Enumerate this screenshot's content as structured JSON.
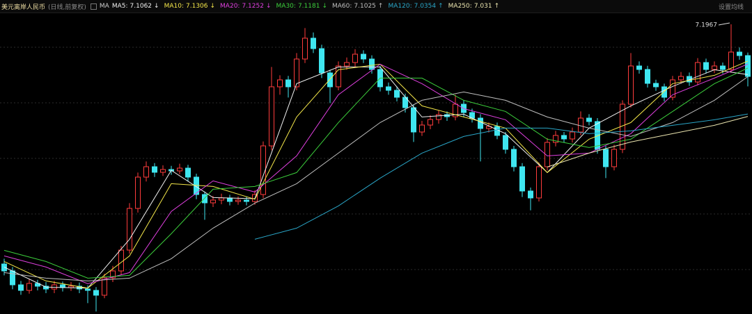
{
  "chart_data": {
    "type": "candlestick",
    "title": "美元离岸人民币",
    "subtitle": "(日线,前复权)",
    "ma_label": "MA",
    "settings_label": "设置均线",
    "up_color": "#ff3c3c",
    "down_color": "#3fe6f0",
    "ylim": [
      6.6755,
      7.2155
    ],
    "open": [
      6.7655,
      6.753,
      6.728,
      6.718,
      6.7305,
      6.7255,
      6.7205,
      6.728,
      6.723,
      6.7255,
      6.7205,
      6.718,
      6.7093,
      6.7405,
      6.753,
      6.7905,
      6.8655,
      6.9218,
      6.9405,
      6.9305,
      6.9355,
      6.933,
      6.938,
      6.9218,
      6.8905,
      6.8755,
      6.8805,
      6.8843,
      6.878,
      6.8805,
      6.878,
      6.8905,
      6.978,
      7.0843,
      7.0968,
      7.0843,
      7.1343,
      7.1718,
      7.153,
      7.1093,
      7.0843,
      7.1218,
      7.128,
      7.143,
      7.1343,
      7.1155,
      7.0843,
      7.078,
      7.0655,
      7.0468,
      7.003,
      7.0155,
      7.0255,
      7.0343,
      7.0305,
      7.053,
      7.038,
      7.028,
      7.0093,
      7.013,
      6.9968,
      6.9718,
      6.9405,
      6.8968,
      6.8843,
      6.9405,
      6.9843,
      6.9968,
      6.9905,
      7.003,
      7.028,
      7.0218,
      6.9718,
      6.9405,
      6.9718,
      7.053,
      7.1218,
      7.1155,
      7.0905,
      7.0843,
      7.0655,
      7.0968,
      7.103,
      7.093,
      7.128,
      7.1155,
      7.1218,
      7.1155,
      7.1468,
      7.1405
    ],
    "high": [
      6.775,
      6.76,
      6.735,
      6.738,
      6.737,
      6.733,
      6.735,
      6.734,
      6.733,
      6.732,
      6.727,
      6.724,
      6.748,
      6.762,
      6.798,
      6.875,
      6.93,
      6.95,
      6.947,
      6.943,
      6.942,
      6.946,
      6.944,
      6.928,
      6.896,
      6.888,
      6.892,
      6.89,
      6.887,
      6.887,
      6.898,
      6.986,
      7.12,
      7.105,
      7.104,
      7.145,
      7.19,
      7.182,
      7.16,
      7.115,
      7.13,
      7.137,
      7.152,
      7.15,
      7.141,
      7.122,
      7.092,
      7.085,
      7.072,
      7.053,
      7.023,
      7.033,
      7.042,
      7.04,
      7.07,
      7.06,
      7.045,
      7.035,
      7.02,
      7.02,
      7.003,
      6.978,
      6.947,
      6.903,
      6.948,
      6.992,
      7.005,
      7.003,
      7.011,
      7.04,
      7.035,
      7.028,
      6.978,
      6.98,
      7.06,
      7.145,
      7.13,
      7.122,
      7.097,
      7.09,
      7.104,
      7.111,
      7.11,
      7.136,
      7.135,
      7.13,
      7.128,
      7.1967,
      7.155,
      7.146
    ],
    "low": [
      6.745,
      6.72,
      6.71,
      6.712,
      6.718,
      6.713,
      6.713,
      6.716,
      6.717,
      6.713,
      6.695,
      6.68,
      6.704,
      6.733,
      6.746,
      6.784,
      6.858,
      6.914,
      6.922,
      6.924,
      6.926,
      6.927,
      6.914,
      6.882,
      6.845,
      6.868,
      6.873,
      6.871,
      6.872,
      6.871,
      6.872,
      6.884,
      6.97,
      7.07,
      7.065,
      7.078,
      7.127,
      7.145,
      7.1,
      7.055,
      7.078,
      7.115,
      7.12,
      7.127,
      7.108,
      7.076,
      7.07,
      7.058,
      7.038,
      6.985,
      6.996,
      7.008,
      7.018,
      7.023,
      7.024,
      7.03,
      7.02,
      6.95,
      7.002,
      6.99,
      6.964,
      6.932,
      6.886,
      6.862,
      6.878,
      6.934,
      6.977,
      6.984,
      6.984,
      6.997,
      7.015,
      6.964,
      6.92,
      6.934,
      6.965,
      7.047,
      7.108,
      7.083,
      7.077,
      7.058,
      7.06,
      7.09,
      7.086,
      7.087,
      7.108,
      7.109,
      7.108,
      7.11,
      7.133,
      7.085
    ],
    "close": [
      6.753,
      6.728,
      6.718,
      6.7305,
      6.7255,
      6.7205,
      6.728,
      6.723,
      6.7255,
      6.7205,
      6.718,
      6.7093,
      6.7405,
      6.753,
      6.7905,
      6.8655,
      6.9218,
      6.9405,
      6.9305,
      6.9355,
      6.933,
      6.938,
      6.9218,
      6.8905,
      6.8755,
      6.8805,
      6.8843,
      6.878,
      6.8805,
      6.878,
      6.8905,
      6.978,
      7.0843,
      7.0968,
      7.0843,
      7.1343,
      7.1718,
      7.153,
      7.1093,
      7.0843,
      7.1218,
      7.128,
      7.143,
      7.1343,
      7.1155,
      7.0843,
      7.078,
      7.0655,
      7.0468,
      7.003,
      7.0155,
      7.0255,
      7.0343,
      7.0305,
      7.053,
      7.038,
      7.028,
      7.0093,
      7.013,
      6.9968,
      6.9718,
      6.9405,
      6.8968,
      6.8843,
      6.9405,
      6.9843,
      6.9968,
      6.9905,
      7.003,
      7.028,
      7.0218,
      6.9718,
      6.9405,
      6.9718,
      7.053,
      7.1218,
      7.1155,
      7.0905,
      7.0843,
      7.0655,
      7.0968,
      7.103,
      7.093,
      7.128,
      7.1155,
      7.1218,
      7.1155,
      7.1468,
      7.1405,
      7.103
    ],
    "series": [
      {
        "name": "MA5",
        "color": "#f0f0f0",
        "trend": "↓",
        "x": [
          0,
          5,
          10,
          15,
          20,
          25,
          30,
          35,
          40,
          45,
          50,
          55,
          60,
          65,
          70,
          75,
          80,
          85,
          89
        ],
        "values": [
          6.76,
          6.724,
          6.722,
          6.81,
          6.934,
          6.885,
          6.883,
          7.09,
          7.12,
          7.12,
          7.03,
          7.035,
          7.0,
          6.93,
          7.01,
          7.05,
          7.085,
          7.115,
          7.1062
        ]
      },
      {
        "name": "MA10",
        "color": "#f5e84a",
        "trend": "↓",
        "x": [
          0,
          5,
          10,
          15,
          20,
          25,
          30,
          35,
          40,
          45,
          50,
          55,
          60,
          65,
          70,
          75,
          80,
          85,
          89
        ],
        "values": [
          6.77,
          6.735,
          6.722,
          6.78,
          6.91,
          6.905,
          6.882,
          7.03,
          7.115,
          7.125,
          7.05,
          7.03,
          7.01,
          6.93,
          6.99,
          7.02,
          7.09,
          7.105,
          7.1306
        ]
      },
      {
        "name": "MA20",
        "color": "#e040e0",
        "trend": "↓",
        "x": [
          0,
          5,
          10,
          15,
          20,
          25,
          30,
          35,
          40,
          45,
          50,
          55,
          60,
          65,
          70,
          75,
          80,
          85,
          89
        ],
        "values": [
          6.78,
          6.76,
          6.73,
          6.75,
          6.86,
          6.915,
          6.895,
          6.96,
          7.07,
          7.125,
          7.09,
          7.045,
          7.025,
          6.96,
          6.965,
          7.0,
          7.07,
          7.1,
          7.1252
        ]
      },
      {
        "name": "MA30",
        "color": "#3ccf3c",
        "trend": "↓",
        "x": [
          0,
          5,
          10,
          15,
          20,
          25,
          30,
          35,
          40,
          45,
          50,
          55,
          60,
          65,
          70,
          75,
          80,
          85,
          89
        ],
        "values": [
          6.79,
          6.77,
          6.74,
          6.745,
          6.82,
          6.9,
          6.905,
          6.93,
          7.02,
          7.1,
          7.1,
          7.06,
          7.04,
          6.99,
          6.975,
          6.99,
          7.04,
          7.09,
          7.1181
        ]
      },
      {
        "name": "MA60",
        "color": "#bfbfbf",
        "trend": "↑",
        "x": [
          0,
          5,
          10,
          15,
          20,
          25,
          30,
          35,
          40,
          45,
          50,
          55,
          60,
          65,
          70,
          75,
          80,
          85,
          89
        ],
        "values": [
          6.75,
          6.74,
          6.735,
          6.74,
          6.775,
          6.83,
          6.875,
          6.91,
          6.965,
          7.02,
          7.06,
          7.075,
          7.06,
          7.03,
          7.01,
          6.995,
          7.02,
          7.06,
          7.1025
        ]
      },
      {
        "name": "MA120",
        "color": "#2aa6c8",
        "trend": "↑",
        "x": [
          0,
          5,
          10,
          15,
          20,
          25,
          30,
          35,
          40,
          45,
          50,
          55,
          60,
          65,
          70,
          75,
          80,
          85,
          89
        ],
        "values": [
          null,
          null,
          null,
          null,
          null,
          null,
          6.81,
          6.83,
          6.87,
          6.92,
          6.965,
          6.995,
          7.01,
          7.01,
          7.0,
          7.005,
          7.015,
          7.025,
          7.0354
        ]
      },
      {
        "name": "MA250",
        "color": "#ece6b0",
        "trend": "↑",
        "x": [
          0,
          5,
          10,
          15,
          20,
          25,
          30,
          35,
          40,
          45,
          50,
          55,
          60,
          65,
          70,
          75,
          80,
          85,
          89
        ],
        "values": [
          null,
          null,
          null,
          null,
          null,
          null,
          null,
          null,
          null,
          null,
          null,
          null,
          null,
          6.94,
          6.965,
          6.985,
          7.0,
          7.015,
          7.031
        ]
      }
    ]
  }
}
